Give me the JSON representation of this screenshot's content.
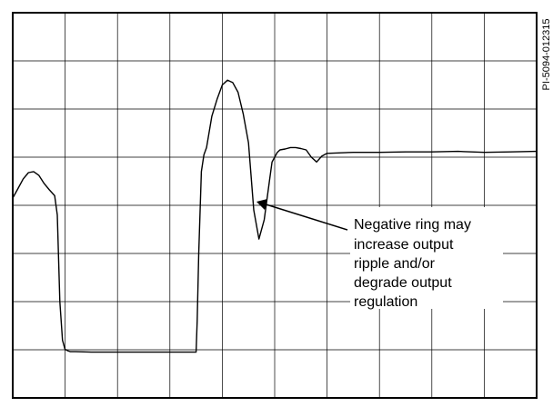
{
  "figure_id": "PI-5094-012315",
  "chart_data": {
    "type": "line",
    "title": "",
    "xlabel": "",
    "ylabel": "",
    "grid": true,
    "grid_divisions": {
      "x": 10,
      "y": 8
    },
    "xlim": [
      0,
      10
    ],
    "ylim": [
      0,
      8
    ],
    "series": [
      {
        "x": [
          0.0,
          0.1,
          0.2,
          0.3,
          0.4,
          0.5,
          0.6,
          0.7,
          0.8,
          0.85,
          0.9,
          0.95,
          1.0,
          1.02,
          1.05,
          1.1,
          1.2,
          1.5,
          2.0,
          2.5,
          3.0,
          3.5,
          3.52,
          3.55,
          3.6,
          3.65,
          3.7,
          3.8,
          3.9,
          4.0,
          4.1,
          4.2,
          4.3,
          4.4,
          4.5,
          4.6,
          4.7,
          4.8,
          4.9,
          4.95,
          5.0,
          5.05,
          5.1,
          5.2,
          5.3,
          5.4,
          5.5,
          5.6,
          5.7,
          5.8,
          5.9,
          6.0,
          6.5,
          7.0,
          7.5,
          8.0,
          8.5,
          9.0,
          9.5,
          10.0
        ],
        "values": [
          4.15,
          4.35,
          4.55,
          4.68,
          4.7,
          4.62,
          4.45,
          4.32,
          4.2,
          3.8,
          2.0,
          1.2,
          1.0,
          1.0,
          0.98,
          0.96,
          0.96,
          0.95,
          0.95,
          0.95,
          0.95,
          0.95,
          1.6,
          3.0,
          4.7,
          5.05,
          5.2,
          5.85,
          6.2,
          6.5,
          6.6,
          6.55,
          6.35,
          5.9,
          5.3,
          3.9,
          3.3,
          3.7,
          4.5,
          4.9,
          5.0,
          5.1,
          5.15,
          5.17,
          5.2,
          5.2,
          5.18,
          5.15,
          5.0,
          4.9,
          5.02,
          5.08,
          5.1,
          5.1,
          5.11,
          5.11,
          5.12,
          5.1,
          5.11,
          5.12
        ]
      }
    ],
    "annotation": {
      "lines": [
        "Negative ring may",
        "increase output",
        "ripple and/or",
        "degrade output",
        "regulation"
      ],
      "arrow_target": {
        "x": 4.9,
        "y": 3.85
      }
    }
  }
}
